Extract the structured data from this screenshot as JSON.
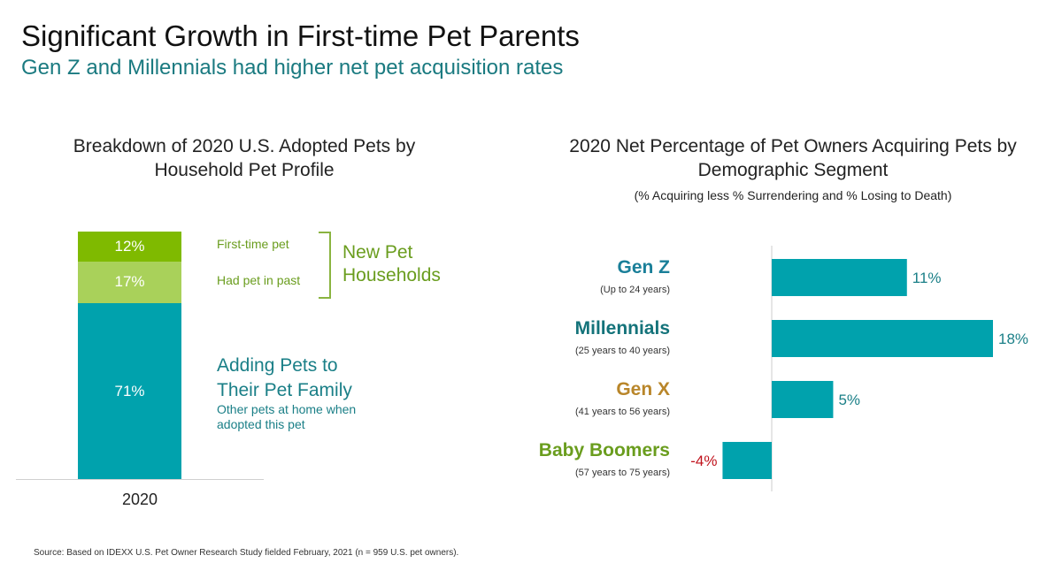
{
  "title": "Significant Growth in First-time Pet Parents",
  "subtitle": "Gen Z and Millennials had higher net pet acquisition rates",
  "colors": {
    "teal": "#00a2ad",
    "green_dark": "#7fba00",
    "green_light": "#a9d15a",
    "negative": "#c0121c",
    "gen_z": "#1a7f99",
    "millennials": "#14737a",
    "gen_x": "#b9862a",
    "baby_boomers": "#6a9d1e"
  },
  "left_chart": {
    "title_line1": "Breakdown of 2020 U.S. Adopted Pets by",
    "title_line2": "Household Pet Profile",
    "year": "2020",
    "segments": [
      {
        "label": "12%",
        "value": 12,
        "desc": "First-time pet"
      },
      {
        "label": "17%",
        "value": 17,
        "desc": "Had pet in past"
      },
      {
        "label": "71%",
        "value": 71,
        "desc": ""
      }
    ],
    "new_pet_line1": "New Pet",
    "new_pet_line2": "Households",
    "adding_line1": "Adding Pets to",
    "adding_line2": "Their Pet Family",
    "adding_sub_line1": "Other pets at home when",
    "adding_sub_line2": "adopted this pet"
  },
  "chart_data": {
    "type": "bar",
    "title": "2020 Net Percentage of Pet Owners Acquiring Pets by Demographic Segment",
    "title_line1": "2020 Net Percentage of Pet Owners Acquiring Pets by",
    "title_line2": "Demographic Segment",
    "note": "(% Acquiring less % Surrendering and % Losing to Death)",
    "categories": [
      "Gen Z",
      "Millennials",
      "Gen X",
      "Baby Boomers"
    ],
    "category_sub": [
      "(Up to 24 years)",
      "(25 years to 40 years)",
      "(41 years to 56 years)",
      "(57 years to 75 years)"
    ],
    "values": [
      11,
      18,
      5,
      -4
    ],
    "value_labels": [
      "11%",
      "18%",
      "5%",
      "-4%"
    ],
    "xlim": [
      -4,
      18
    ],
    "orientation": "horizontal"
  },
  "source": "Source: Based on IDEXX U.S. Pet Owner Research Study fielded February, 2021 (n = 959 U.S. pet owners)."
}
